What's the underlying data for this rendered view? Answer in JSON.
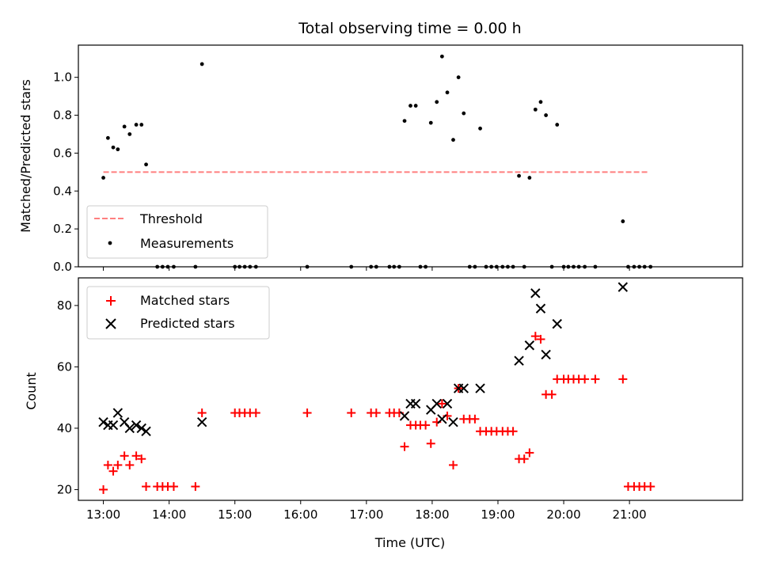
{
  "chart_data": [
    {
      "type": "scatter",
      "title": "Total observing time = 0.00 h",
      "xlabel": "",
      "ylabel": "Matched/Predicted stars",
      "xlim": [
        12.62,
        22.72
      ],
      "ylim": [
        0,
        1.17
      ],
      "yticks": [
        0.0,
        0.2,
        0.4,
        0.6,
        0.8,
        1.0
      ],
      "ytick_labels": [
        "0.0",
        "0.2",
        "0.4",
        "0.6",
        "0.8",
        "1.0"
      ],
      "grid": false,
      "legend_position": "lower-left",
      "legend": [
        "Threshold",
        "Measurements"
      ],
      "threshold": {
        "name": "Threshold",
        "value": 0.5,
        "x_start": 13.0,
        "x_end": 21.3,
        "color": "#ff7f7f",
        "style": "dashed"
      },
      "series": [
        {
          "name": "Measurements",
          "marker": "dot",
          "color": "#000000",
          "points": [
            [
              13.0,
              0.47
            ],
            [
              13.07,
              0.68
            ],
            [
              13.15,
              0.63
            ],
            [
              13.22,
              0.62
            ],
            [
              13.32,
              0.74
            ],
            [
              13.4,
              0.7
            ],
            [
              13.5,
              0.75
            ],
            [
              13.58,
              0.75
            ],
            [
              13.65,
              0.54
            ],
            [
              14.5,
              1.07
            ],
            [
              17.58,
              0.77
            ],
            [
              17.67,
              0.85
            ],
            [
              17.75,
              0.85
            ],
            [
              17.98,
              0.76
            ],
            [
              18.07,
              0.87
            ],
            [
              18.15,
              1.11
            ],
            [
              18.23,
              0.92
            ],
            [
              18.32,
              0.67
            ],
            [
              18.4,
              1.0
            ],
            [
              18.48,
              0.81
            ],
            [
              18.73,
              0.73
            ],
            [
              19.32,
              0.48
            ],
            [
              19.48,
              0.47
            ],
            [
              19.57,
              0.83
            ],
            [
              19.65,
              0.87
            ],
            [
              19.73,
              0.8
            ],
            [
              19.9,
              0.75
            ],
            [
              20.9,
              0.24
            ],
            [
              13.82,
              0.0
            ],
            [
              13.9,
              0.0
            ],
            [
              13.98,
              0.0
            ],
            [
              14.07,
              0.0
            ],
            [
              14.4,
              0.0
            ],
            [
              15.0,
              0.0
            ],
            [
              15.07,
              0.0
            ],
            [
              15.15,
              0.0
            ],
            [
              15.23,
              0.0
            ],
            [
              15.32,
              0.0
            ],
            [
              16.1,
              0.0
            ],
            [
              16.77,
              0.0
            ],
            [
              17.07,
              0.0
            ],
            [
              17.15,
              0.0
            ],
            [
              17.35,
              0.0
            ],
            [
              17.42,
              0.0
            ],
            [
              17.5,
              0.0
            ],
            [
              17.82,
              0.0
            ],
            [
              17.9,
              0.0
            ],
            [
              18.57,
              0.0
            ],
            [
              18.65,
              0.0
            ],
            [
              18.82,
              0.0
            ],
            [
              18.9,
              0.0
            ],
            [
              18.98,
              0.0
            ],
            [
              19.07,
              0.0
            ],
            [
              19.15,
              0.0
            ],
            [
              19.23,
              0.0
            ],
            [
              19.4,
              0.0
            ],
            [
              19.82,
              0.0
            ],
            [
              20.0,
              0.0
            ],
            [
              20.07,
              0.0
            ],
            [
              20.15,
              0.0
            ],
            [
              20.23,
              0.0
            ],
            [
              20.32,
              0.0
            ],
            [
              20.48,
              0.0
            ],
            [
              20.98,
              0.0
            ],
            [
              21.07,
              0.0
            ],
            [
              21.15,
              0.0
            ],
            [
              21.23,
              0.0
            ],
            [
              21.32,
              0.0
            ]
          ]
        }
      ]
    },
    {
      "type": "scatter",
      "title": "",
      "xlabel": "Time (UTC)",
      "ylabel": "Count",
      "xlim": [
        12.62,
        22.72
      ],
      "ylim": [
        16.5,
        89
      ],
      "xticks": [
        13,
        14,
        15,
        16,
        17,
        18,
        19,
        20,
        21
      ],
      "xtick_labels": [
        "13:00",
        "14:00",
        "15:00",
        "16:00",
        "17:00",
        "18:00",
        "19:00",
        "20:00",
        "21:00"
      ],
      "yticks": [
        20,
        40,
        60,
        80
      ],
      "ytick_labels": [
        "20",
        "40",
        "60",
        "80"
      ],
      "grid": false,
      "legend_position": "upper-left",
      "legend": [
        "Matched stars",
        "Predicted stars"
      ],
      "series": [
        {
          "name": "Matched stars",
          "marker": "plus",
          "color": "#ff0000",
          "points": [
            [
              13.0,
              20
            ],
            [
              13.07,
              28
            ],
            [
              13.15,
              26
            ],
            [
              13.22,
              28
            ],
            [
              13.32,
              31
            ],
            [
              13.4,
              28
            ],
            [
              13.5,
              31
            ],
            [
              13.58,
              30
            ],
            [
              13.65,
              21
            ],
            [
              13.82,
              21
            ],
            [
              13.9,
              21
            ],
            [
              13.98,
              21
            ],
            [
              14.07,
              21
            ],
            [
              14.4,
              21
            ],
            [
              14.5,
              45
            ],
            [
              15.0,
              45
            ],
            [
              15.07,
              45
            ],
            [
              15.15,
              45
            ],
            [
              15.23,
              45
            ],
            [
              15.32,
              45
            ],
            [
              16.1,
              45
            ],
            [
              16.77,
              45
            ],
            [
              17.07,
              45
            ],
            [
              17.15,
              45
            ],
            [
              17.35,
              45
            ],
            [
              17.42,
              45
            ],
            [
              17.5,
              45
            ],
            [
              17.58,
              34
            ],
            [
              17.67,
              41
            ],
            [
              17.75,
              41
            ],
            [
              17.82,
              41
            ],
            [
              17.9,
              41
            ],
            [
              17.98,
              35
            ],
            [
              18.07,
              42
            ],
            [
              18.15,
              48
            ],
            [
              18.23,
              44
            ],
            [
              18.32,
              28
            ],
            [
              18.4,
              53
            ],
            [
              18.48,
              43
            ],
            [
              18.57,
              43
            ],
            [
              18.65,
              43
            ],
            [
              18.73,
              39
            ],
            [
              18.82,
              39
            ],
            [
              18.9,
              39
            ],
            [
              18.98,
              39
            ],
            [
              19.07,
              39
            ],
            [
              19.15,
              39
            ],
            [
              19.23,
              39
            ],
            [
              19.32,
              30
            ],
            [
              19.4,
              30
            ],
            [
              19.48,
              32
            ],
            [
              19.57,
              70
            ],
            [
              19.65,
              69
            ],
            [
              19.73,
              51
            ],
            [
              19.82,
              51
            ],
            [
              19.9,
              56
            ],
            [
              20.0,
              56
            ],
            [
              20.07,
              56
            ],
            [
              20.15,
              56
            ],
            [
              20.23,
              56
            ],
            [
              20.32,
              56
            ],
            [
              20.48,
              56
            ],
            [
              20.9,
              56
            ],
            [
              20.98,
              21
            ],
            [
              21.07,
              21
            ],
            [
              21.15,
              21
            ],
            [
              21.23,
              21
            ],
            [
              21.32,
              21
            ]
          ]
        },
        {
          "name": "Predicted stars",
          "marker": "x",
          "color": "#000000",
          "points": [
            [
              13.0,
              42
            ],
            [
              13.07,
              41
            ],
            [
              13.15,
              41
            ],
            [
              13.22,
              45
            ],
            [
              13.32,
              42
            ],
            [
              13.4,
              40
            ],
            [
              13.5,
              41
            ],
            [
              13.58,
              40
            ],
            [
              13.65,
              39
            ],
            [
              14.5,
              42
            ],
            [
              17.58,
              44
            ],
            [
              17.67,
              48
            ],
            [
              17.75,
              48
            ],
            [
              17.98,
              46
            ],
            [
              18.07,
              48
            ],
            [
              18.15,
              43
            ],
            [
              18.23,
              48
            ],
            [
              18.32,
              42
            ],
            [
              18.4,
              53
            ],
            [
              18.48,
              53
            ],
            [
              18.73,
              53
            ],
            [
              19.32,
              62
            ],
            [
              19.48,
              67
            ],
            [
              19.57,
              84
            ],
            [
              19.65,
              79
            ],
            [
              19.73,
              64
            ],
            [
              19.9,
              74
            ],
            [
              20.9,
              86
            ]
          ]
        }
      ]
    }
  ]
}
